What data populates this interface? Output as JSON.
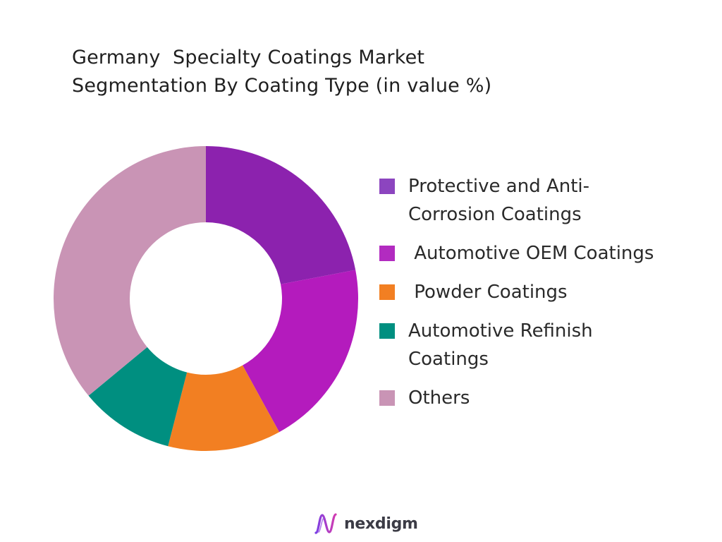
{
  "title_lines": [
    "Germany  Specialty Coatings Market",
    "Segmentation By Coating Type (in value %)"
  ],
  "chart_data": {
    "type": "pie",
    "variant": "donut",
    "title": "Germany  Specialty Coatings Market Segmentation By Coating Type (in value %)",
    "unit": "%",
    "legend_position": "right",
    "start_angle": "top, clockwise",
    "categories": [
      "Protective and Anti-Corrosion Coatings",
      "Automotive OEM Coatings",
      "Powder Coatings",
      "Automotive Refinish Coatings",
      "Others"
    ],
    "values": [
      22,
      20,
      12,
      10,
      36
    ],
    "colors": [
      "#8c22ae",
      "#b41bbd",
      "#f27f22",
      "#008f80",
      "#c994b5"
    ]
  },
  "legend": {
    "items": [
      {
        "lines": [
          "Protective and Anti-",
          "Corrosion Coatings"
        ],
        "color": "#8c45bf"
      },
      {
        "lines": [
          " Automotive OEM Coatings"
        ],
        "color": "#b22bc0"
      },
      {
        "lines": [
          " Powder Coatings"
        ],
        "color": "#f27f22"
      },
      {
        "lines": [
          "Automotive Refinish",
          "Coatings"
        ],
        "color": "#008f80"
      },
      {
        "lines": [
          "Others"
        ],
        "color": "#c994b5"
      }
    ]
  },
  "brand": {
    "name": "nexdigm",
    "icon": "nexdigm-logo-icon"
  }
}
